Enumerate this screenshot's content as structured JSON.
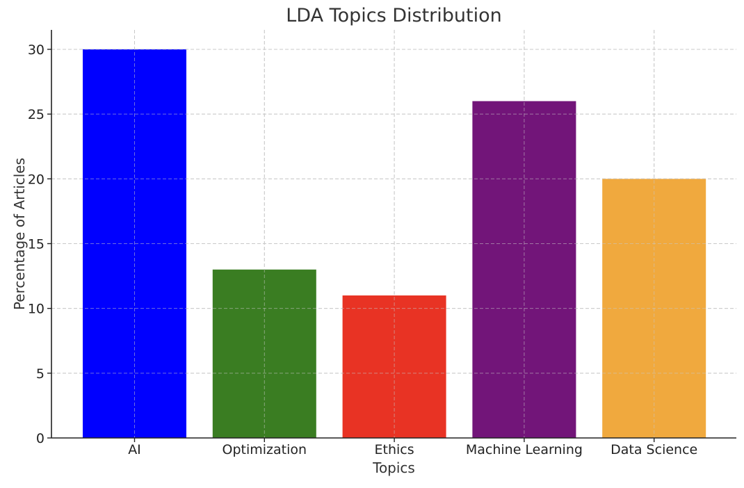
{
  "chart_data": {
    "type": "bar",
    "title": "LDA Topics Distribution",
    "xlabel": "Topics",
    "ylabel": "Percentage of Articles",
    "categories": [
      "AI",
      "Optimization",
      "Ethics",
      "Machine Learning",
      "Data Science"
    ],
    "values": [
      30,
      13,
      11,
      26,
      20
    ],
    "colors": [
      "#0000ff",
      "#3a7d22",
      "#e83324",
      "#721579",
      "#f0a93e"
    ],
    "ylim": [
      0,
      31.5
    ],
    "yticks": [
      0,
      5,
      10,
      15,
      20,
      25,
      30
    ],
    "grid": true,
    "legend": "none"
  }
}
